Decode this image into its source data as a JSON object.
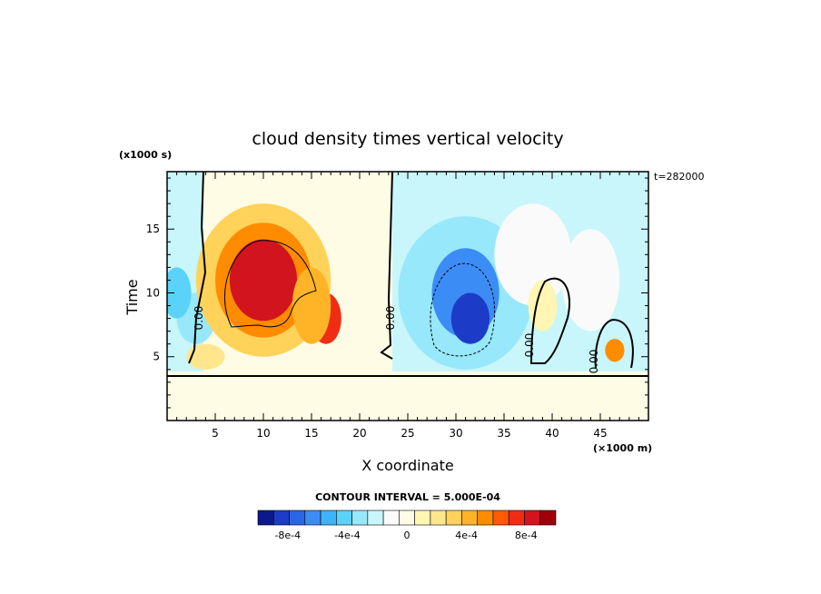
{
  "chart_data": {
    "type": "heatmap",
    "title": "cloud density times vertical velocity",
    "xlabel": "X coordinate",
    "ylabel": "Time",
    "x_unit": "(×1000 m)",
    "y_unit": "(x1000 s)",
    "timestamp": "t=282000",
    "xlim": [
      0,
      50
    ],
    "ylim": [
      0,
      19.5
    ],
    "x_ticks": [
      5,
      10,
      15,
      20,
      25,
      30,
      35,
      40,
      45
    ],
    "y_ticks": [
      5,
      10,
      15
    ],
    "contour_interval": "CONTOUR INTERVAL = 5.000E-04",
    "contour_labels": [
      "0.00",
      "0.00",
      "0.00",
      "0.00"
    ],
    "colorbar": {
      "min": -0.001,
      "max": 0.001,
      "step": 0.0001,
      "tick_labels": [
        "-8e-4",
        "-4e-4",
        "0",
        "4e-4",
        "8e-4"
      ],
      "tick_values": [
        -0.0008,
        -0.0004,
        0,
        0.0004,
        0.0008
      ],
      "colors": [
        "#0a1a8c",
        "#1c3cc8",
        "#2b64e6",
        "#3c8cf5",
        "#3cb4fa",
        "#5ad2fa",
        "#96e8fa",
        "#c8f6fa",
        "#fafafa",
        "#fffce6",
        "#fff6b4",
        "#ffe68c",
        "#ffd25a",
        "#ffb428",
        "#ff8c00",
        "#ff5a00",
        "#f02d14",
        "#d2141e",
        "#a0000a"
      ]
    },
    "cells": [
      {
        "x": 3,
        "y": 8,
        "sx": 2,
        "sy": 2,
        "v": -0.0003
      },
      {
        "x": 1,
        "y": 10,
        "sx": 1.5,
        "sy": 2,
        "v": -0.0004
      },
      {
        "x": 4,
        "y": 5,
        "sx": 2,
        "sy": 1,
        "v": 0.0002
      },
      {
        "x": 10,
        "y": 11,
        "sx": 7,
        "sy": 6,
        "v": 0.00025
      },
      {
        "x": 10,
        "y": 11,
        "sx": 5,
        "sy": 4.5,
        "v": 0.0005
      },
      {
        "x": 10,
        "y": 11,
        "sx": 3.5,
        "sy": 3.2,
        "v": 0.00075
      },
      {
        "x": 16.5,
        "y": 8,
        "sx": 1.6,
        "sy": 2,
        "v": 0.0007
      },
      {
        "x": 15,
        "y": 9,
        "sx": 2,
        "sy": 3,
        "v": 0.0004
      },
      {
        "x": 31,
        "y": 10,
        "sx": 7,
        "sy": 6,
        "v": -0.0003
      },
      {
        "x": 31,
        "y": 10,
        "sx": 3.5,
        "sy": 3.5,
        "v": -0.0006
      },
      {
        "x": 31.5,
        "y": 8,
        "sx": 2,
        "sy": 2,
        "v": -0.0008
      },
      {
        "x": 38,
        "y": 13,
        "sx": 4,
        "sy": 4,
        "v": -0.00015
      },
      {
        "x": 44,
        "y": 11,
        "sx": 3,
        "sy": 4,
        "v": -0.00015
      },
      {
        "x": 39,
        "y": 9,
        "sx": 1.5,
        "sy": 2,
        "v": 0.0001
      },
      {
        "x": 46.5,
        "y": 5.5,
        "sx": 1,
        "sy": 0.9,
        "v": 0.0005
      }
    ]
  }
}
